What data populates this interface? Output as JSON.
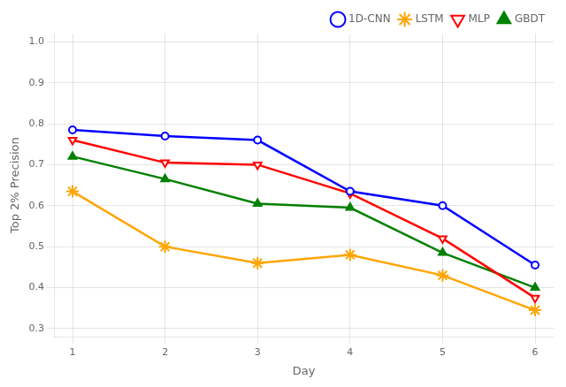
{
  "chart_data": {
    "type": "line",
    "x_label": "Day",
    "y_label": "Top 2% Precision",
    "x": [
      1,
      2,
      3,
      4,
      5,
      6
    ],
    "series": [
      {
        "name": "1D-CNN",
        "color": "#0000FF",
        "marker": "circle_open",
        "values": [
          0.785,
          0.77,
          0.76,
          0.635,
          0.6,
          0.455
        ]
      },
      {
        "name": "LSTM",
        "color": "#FFA500",
        "marker": "star",
        "values": [
          0.635,
          0.5,
          0.46,
          0.48,
          0.43,
          0.345
        ]
      },
      {
        "name": "MLP",
        "color": "#FF0000",
        "marker": "triangle_down_open",
        "values": [
          0.76,
          0.705,
          0.7,
          0.63,
          0.52,
          0.375
        ]
      },
      {
        "name": "GBDT",
        "color": "#008000",
        "marker": "triangle",
        "values": [
          0.72,
          0.665,
          0.605,
          0.595,
          0.485,
          0.4
        ]
      }
    ],
    "xlim": [
      0.8,
      6.2
    ],
    "xticks": [
      1,
      2,
      3,
      4,
      5,
      6
    ],
    "ylim": [
      0.28,
      1.02
    ],
    "yticks": [
      0.3,
      0.4,
      0.5,
      0.6,
      0.7,
      0.8,
      0.9,
      {
        "value": 1,
        "label": "1.0"
      }
    ],
    "grid": true,
    "legend": "upper right"
  }
}
